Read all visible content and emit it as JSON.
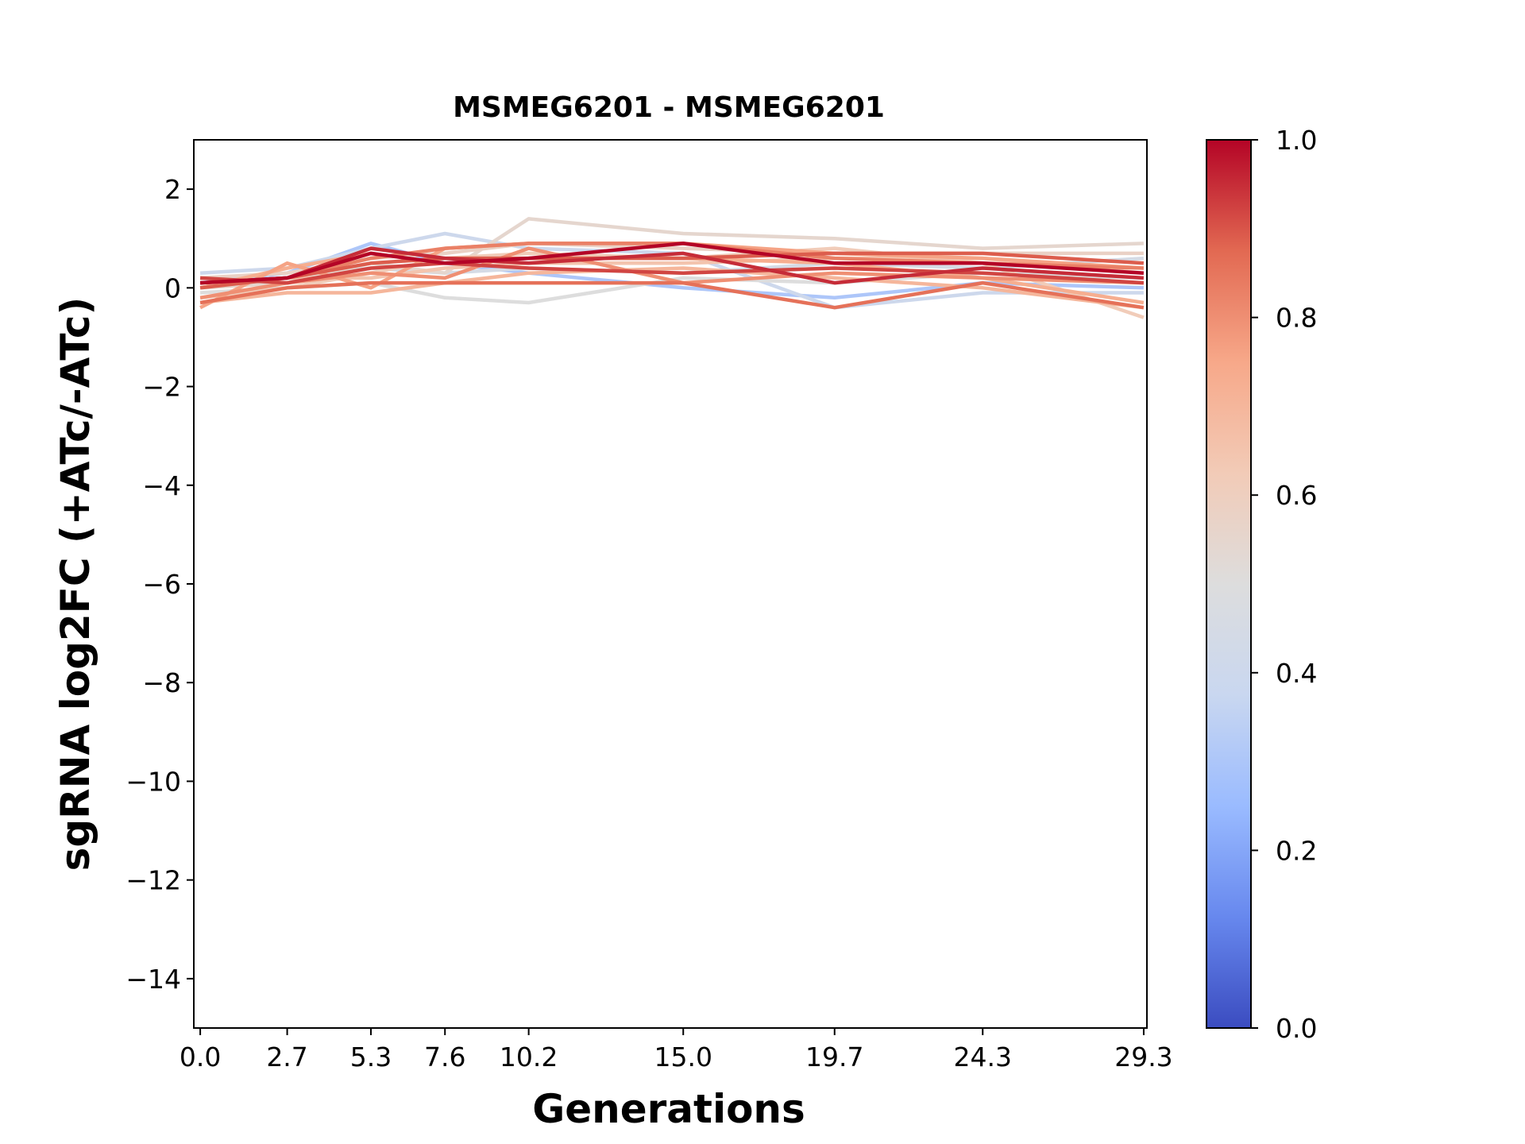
{
  "chart_data": {
    "type": "line",
    "title": "MSMEG6201 - MSMEG6201",
    "xlabel": "Generations",
    "ylabel": "sgRNA log2FC (+ATc/-ATc)",
    "x": [
      0.0,
      2.7,
      5.3,
      7.6,
      10.2,
      15.0,
      19.7,
      24.3,
      29.3
    ],
    "x_tick_labels": [
      "0.0",
      "2.7",
      "5.3",
      "7.6",
      "10.2",
      "15.0",
      "19.7",
      "24.3",
      "29.3"
    ],
    "xlim": [
      -0.2,
      29.4
    ],
    "ylim": [
      -15,
      3
    ],
    "y_ticks": [
      2,
      0,
      -2,
      -4,
      -6,
      -8,
      -10,
      -12,
      -14
    ],
    "y_tick_labels": [
      "2",
      "0",
      "−2",
      "−4",
      "−6",
      "−8",
      "−10",
      "−12",
      "−14"
    ],
    "grid": false,
    "colormap": "coolwarm",
    "colorbar": {
      "range": [
        0,
        1
      ],
      "ticks": [
        0.0,
        0.2,
        0.4,
        0.6,
        0.8,
        1.0
      ],
      "tick_labels": [
        "0.0",
        "0.2",
        "0.4",
        "0.6",
        "0.8",
        "1.0"
      ],
      "colors": [
        "#3b4cc0",
        "#6788ee",
        "#9abbff",
        "#c9d7f0",
        "#dddddd",
        "#f2cbb7",
        "#f7a889",
        "#e26952",
        "#b40426"
      ]
    },
    "series": [
      {
        "color_value": 0.3,
        "values": [
          0.1,
          0.3,
          0.9,
          0.5,
          0.3,
          0.0,
          -0.2,
          0.1,
          0.0
        ]
      },
      {
        "color_value": 0.4,
        "values": [
          0.3,
          0.4,
          0.8,
          1.1,
          0.8,
          0.7,
          -0.4,
          -0.1,
          -0.1
        ]
      },
      {
        "color_value": 0.45,
        "values": [
          0.0,
          0.2,
          0.4,
          0.3,
          0.4,
          0.3,
          0.5,
          0.4,
          0.6
        ]
      },
      {
        "color_value": 0.5,
        "values": [
          -0.1,
          0.0,
          0.1,
          -0.2,
          -0.3,
          0.2,
          0.1,
          0.3,
          0.2
        ]
      },
      {
        "color_value": 0.55,
        "values": [
          0.0,
          0.1,
          0.5,
          0.3,
          1.4,
          1.1,
          1.0,
          0.8,
          0.9
        ]
      },
      {
        "color_value": 0.58,
        "values": [
          0.2,
          0.3,
          0.6,
          0.7,
          0.9,
          0.8,
          0.7,
          0.7,
          0.7
        ]
      },
      {
        "color_value": 0.62,
        "values": [
          -0.2,
          0.0,
          0.3,
          0.6,
          0.7,
          0.6,
          0.8,
          0.5,
          -0.6
        ]
      },
      {
        "color_value": 0.65,
        "values": [
          0.1,
          0.2,
          0.2,
          0.4,
          0.5,
          0.5,
          0.6,
          0.6,
          0.3
        ]
      },
      {
        "color_value": 0.7,
        "values": [
          -0.3,
          -0.1,
          -0.1,
          0.1,
          0.3,
          0.4,
          0.2,
          0.0,
          -0.4
        ]
      },
      {
        "color_value": 0.73,
        "values": [
          0.0,
          0.4,
          0.7,
          0.5,
          0.6,
          0.6,
          0.5,
          0.2,
          -0.3
        ]
      },
      {
        "color_value": 0.76,
        "values": [
          -0.4,
          0.5,
          0.0,
          0.8,
          0.9,
          0.9,
          0.7,
          0.6,
          0.4
        ]
      },
      {
        "color_value": 0.8,
        "values": [
          -0.2,
          0.1,
          0.3,
          0.2,
          0.8,
          0.1,
          0.3,
          0.2,
          0.1
        ]
      },
      {
        "color_value": 0.83,
        "values": [
          0.1,
          0.2,
          0.6,
          0.8,
          0.9,
          0.9,
          0.6,
          0.5,
          0.4
        ]
      },
      {
        "color_value": 0.86,
        "values": [
          -0.3,
          0.0,
          0.1,
          0.1,
          0.1,
          0.1,
          -0.4,
          0.1,
          -0.4
        ]
      },
      {
        "color_value": 0.89,
        "values": [
          0.0,
          0.2,
          0.5,
          0.6,
          0.6,
          0.6,
          0.7,
          0.7,
          0.5
        ]
      },
      {
        "color_value": 0.92,
        "values": [
          0.2,
          0.1,
          0.4,
          0.5,
          0.4,
          0.3,
          0.4,
          0.3,
          0.1
        ]
      },
      {
        "color_value": 0.95,
        "values": [
          0.1,
          0.2,
          0.8,
          0.6,
          0.5,
          0.7,
          0.1,
          0.4,
          0.2
        ]
      },
      {
        "color_value": 1.0,
        "values": [
          0.1,
          0.2,
          0.7,
          0.5,
          0.6,
          0.9,
          0.5,
          0.5,
          0.3
        ]
      }
    ]
  }
}
